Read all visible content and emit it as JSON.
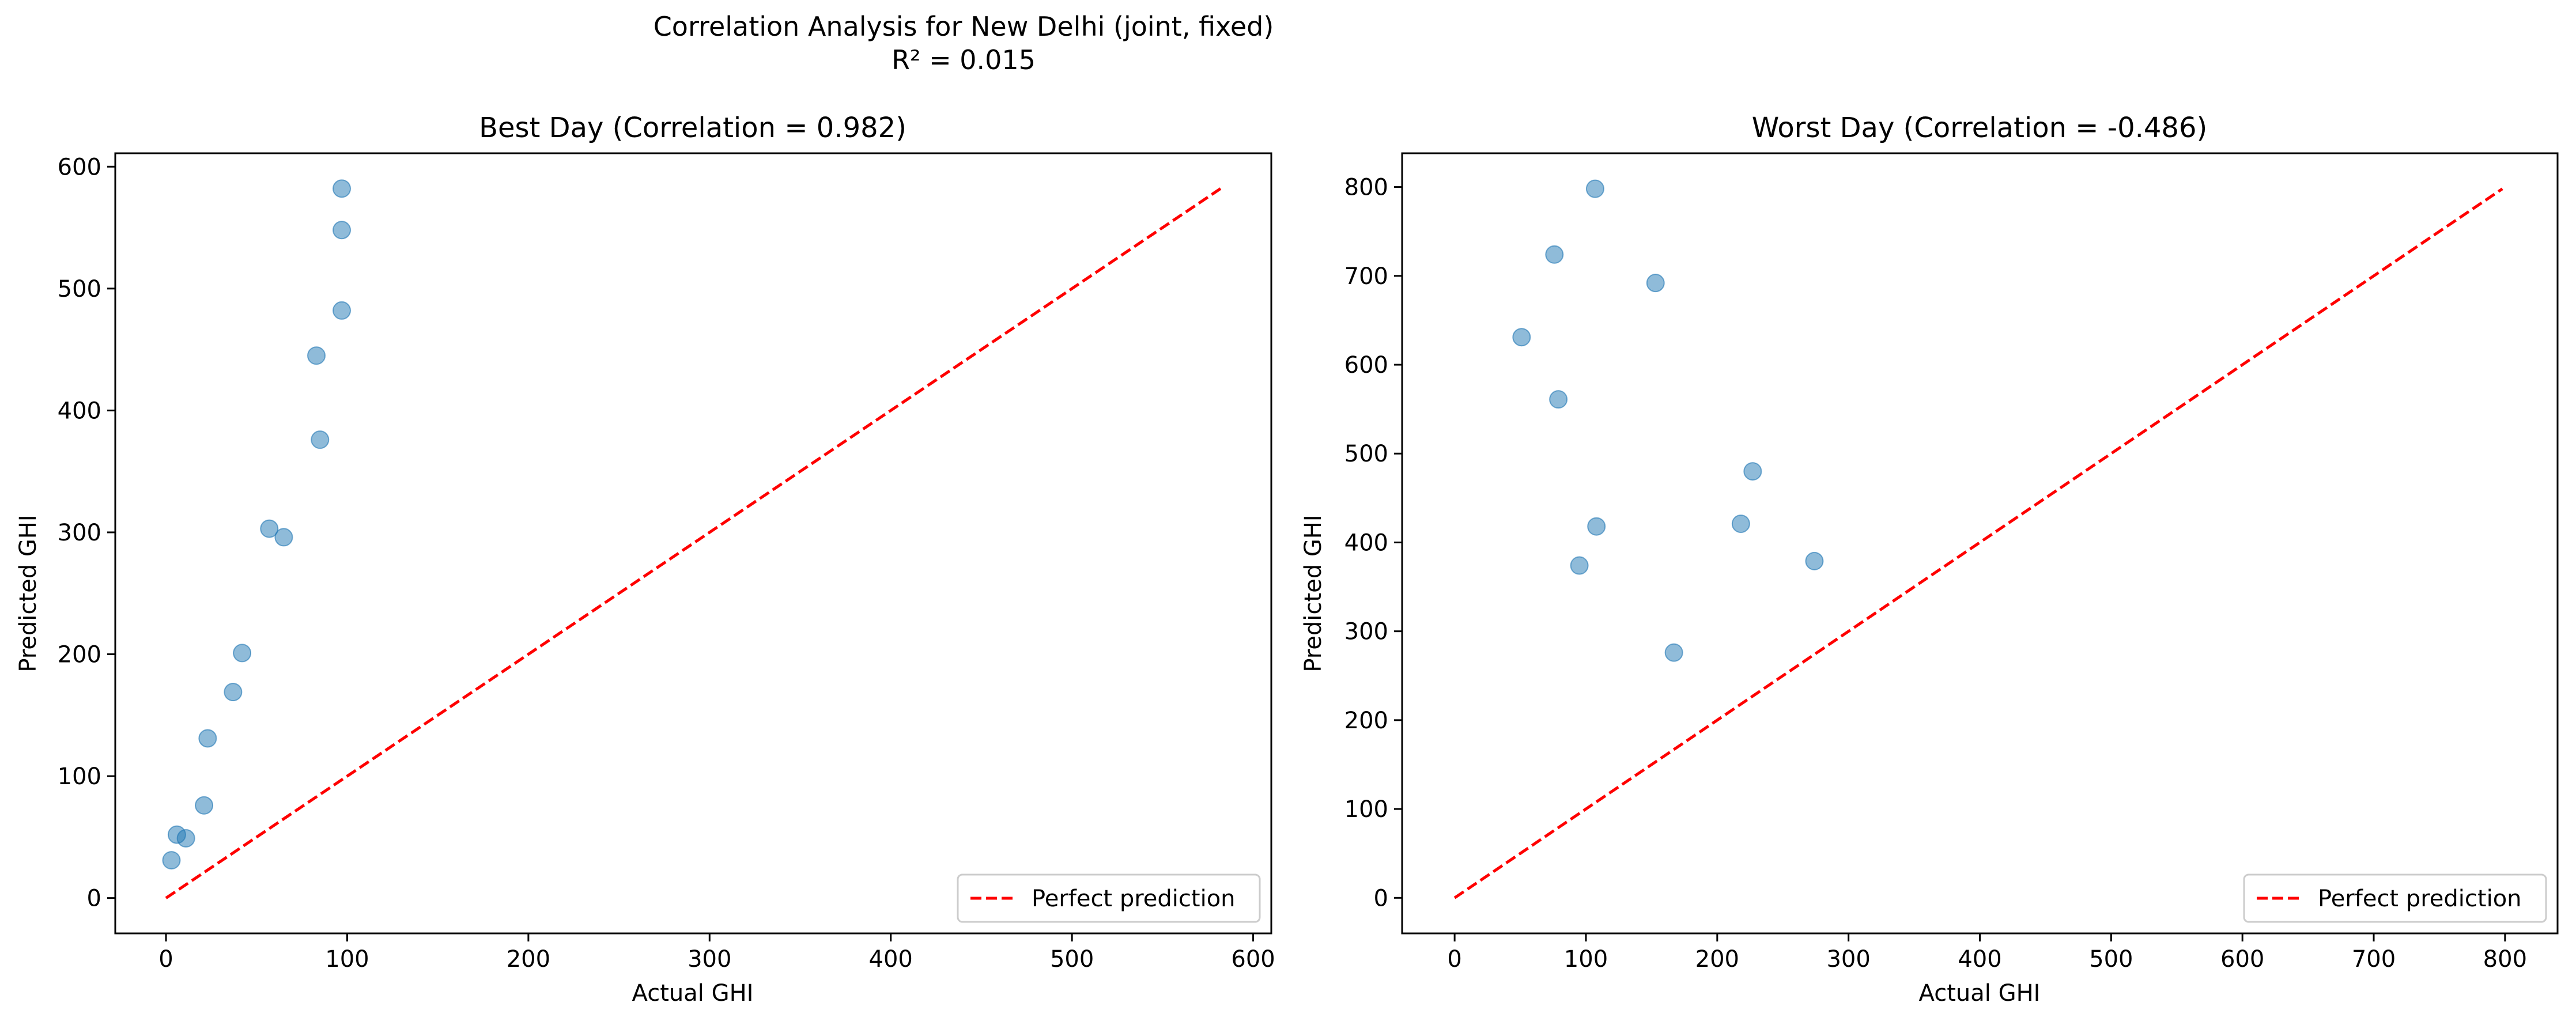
{
  "figure": {
    "suptitle_line1": "Correlation Analysis for New Delhi (joint, fixed)",
    "suptitle_line2": "R² = 0.015"
  },
  "colors": {
    "points": "#1f77b4",
    "reference_line": "#ff0000",
    "axes": "#000000",
    "legend_border": "#cccccc"
  },
  "chart_data": [
    {
      "type": "scatter",
      "title": "Best Day (Correlation = 0.982)",
      "xlabel": "Actual GHI",
      "ylabel": "Predicted GHI",
      "xlim": [
        -28,
        610
      ],
      "ylim": [
        -29,
        611
      ],
      "xticks": [
        0,
        100,
        200,
        300,
        400,
        500,
        600
      ],
      "yticks": [
        0,
        100,
        200,
        300,
        400,
        500,
        600
      ],
      "grid": false,
      "legend_position": "lower right",
      "reference_line": {
        "label": "Perfect prediction",
        "from": [
          0,
          0
        ],
        "to": [
          582,
          582
        ],
        "style": "dashed"
      },
      "points": [
        {
          "x": 97,
          "y": 582
        },
        {
          "x": 97,
          "y": 548
        },
        {
          "x": 97,
          "y": 482
        },
        {
          "x": 83,
          "y": 445
        },
        {
          "x": 85,
          "y": 376
        },
        {
          "x": 57,
          "y": 303
        },
        {
          "x": 65,
          "y": 296
        },
        {
          "x": 42,
          "y": 201
        },
        {
          "x": 37,
          "y": 169
        },
        {
          "x": 23,
          "y": 131
        },
        {
          "x": 21,
          "y": 76
        },
        {
          "x": 6,
          "y": 52
        },
        {
          "x": 11,
          "y": 49
        },
        {
          "x": 3,
          "y": 31
        }
      ]
    },
    {
      "type": "scatter",
      "title": "Worst Day (Correlation = -0.486)",
      "xlabel": "Actual GHI",
      "ylabel": "Predicted GHI",
      "xlim": [
        -40,
        840
      ],
      "ylim": [
        -40,
        838
      ],
      "xticks": [
        0,
        100,
        200,
        300,
        400,
        500,
        600,
        700,
        800
      ],
      "yticks": [
        0,
        100,
        200,
        300,
        400,
        500,
        600,
        700,
        800
      ],
      "grid": false,
      "legend_position": "lower right",
      "reference_line": {
        "label": "Perfect prediction",
        "from": [
          0,
          0
        ],
        "to": [
          798,
          798
        ],
        "style": "dashed"
      },
      "points": [
        {
          "x": 107,
          "y": 798
        },
        {
          "x": 76,
          "y": 724
        },
        {
          "x": 153,
          "y": 692
        },
        {
          "x": 51,
          "y": 631
        },
        {
          "x": 79,
          "y": 561
        },
        {
          "x": 227,
          "y": 480
        },
        {
          "x": 218,
          "y": 421
        },
        {
          "x": 108,
          "y": 418
        },
        {
          "x": 274,
          "y": 379
        },
        {
          "x": 95,
          "y": 374
        },
        {
          "x": 167,
          "y": 276
        }
      ]
    }
  ]
}
